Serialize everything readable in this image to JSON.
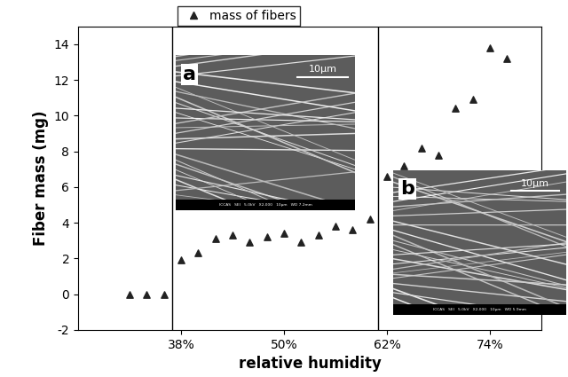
{
  "chart_data": {
    "type": "scatter",
    "x_label": "relative humidity",
    "y_label": "Fiber mass (mg)",
    "x": [
      32,
      34,
      36,
      38,
      40,
      42,
      44,
      46,
      48,
      50,
      52,
      54,
      56,
      58,
      60,
      62,
      64,
      66,
      68,
      70,
      72,
      74,
      76
    ],
    "series": [
      {
        "name": "mass of fibers",
        "color": "#222222",
        "marker": "triangle",
        "values": [
          0,
          0,
          0,
          1.9,
          2.3,
          3.1,
          3.3,
          2.9,
          3.2,
          3.4,
          2.9,
          3.3,
          3.8,
          3.6,
          4.2,
          6.6,
          7.2,
          8.2,
          7.8,
          10.4,
          10.9,
          13.8,
          13.2
        ]
      }
    ],
    "xlim": [
      26,
      80
    ],
    "ylim": [
      -2,
      15
    ],
    "xticks": [
      {
        "value": 38,
        "label": "38%"
      },
      {
        "value": 50,
        "label": "50%"
      },
      {
        "value": 62,
        "label": "62%"
      },
      {
        "value": 74,
        "label": "74%"
      }
    ],
    "yticks": [
      -2,
      0,
      2,
      4,
      6,
      8,
      10,
      12,
      14
    ],
    "dividers": [
      37,
      61
    ],
    "legend": "upper center",
    "insets": [
      {
        "label": "a",
        "scale": "10μm",
        "footer": "ICCAS   SEI   5.0kV   X2,000   10μm   WD 7.2mm"
      },
      {
        "label": "b",
        "scale": "10μm",
        "footer": "ICCAS   SEI   5.0kV   X2,000   10μm   WD 5.9mm"
      }
    ]
  }
}
